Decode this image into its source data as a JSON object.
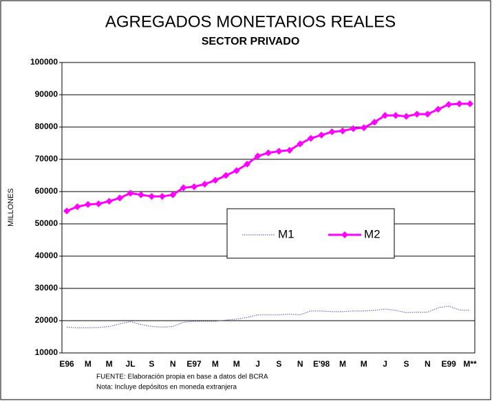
{
  "chart_data": {
    "type": "line",
    "title": "AGREGADOS MONETARIOS REALES",
    "subtitle": "SECTOR PRIVADO",
    "y_label": "MILLONES",
    "notes": [
      "FUENTE:  Elaboración propia en base a datos del BCRA",
      "Nota:  Incluye depósitos en moneda extranjera"
    ],
    "categories": [
      "E96",
      null,
      "M",
      null,
      "M",
      null,
      "JL",
      null,
      "S",
      null,
      "N",
      null,
      "E97",
      null,
      "M",
      null,
      "M",
      null,
      "J",
      null,
      "S",
      null,
      "N",
      null,
      "E'98",
      null,
      "M",
      null,
      "M",
      null,
      "J",
      null,
      "S",
      null,
      "N",
      null,
      "E99",
      null,
      "M**"
    ],
    "series": [
      {
        "name": "M1",
        "color": "#6a6ab8",
        "values": [
          18000,
          17800,
          17800,
          17900,
          18200,
          19000,
          19700,
          18800,
          18200,
          18000,
          18200,
          19500,
          19800,
          19800,
          19800,
          20200,
          20500,
          21000,
          21800,
          21800,
          21800,
          22000,
          21800,
          23000,
          23000,
          22800,
          22800,
          23000,
          23000,
          23200,
          23600,
          23200,
          22500,
          22600,
          22600,
          24000,
          24500,
          23300,
          23200
        ]
      },
      {
        "name": "M2",
        "color": "#ff00ff",
        "values": [
          54000,
          55300,
          56000,
          56200,
          57000,
          58000,
          59500,
          59000,
          58500,
          58500,
          59000,
          61200,
          61500,
          62300,
          63500,
          65000,
          66500,
          68500,
          71000,
          72000,
          72500,
          72800,
          74800,
          76500,
          77500,
          78500,
          78800,
          79500,
          79800,
          81500,
          83600,
          83600,
          83300,
          84000,
          84000,
          85500,
          87000,
          87200,
          87200
        ]
      }
    ],
    "ylim": [
      10000,
      100000
    ],
    "yticks": [
      10000,
      20000,
      30000,
      40000,
      50000,
      60000,
      70000,
      80000,
      90000,
      100000
    ],
    "grid": true
  }
}
